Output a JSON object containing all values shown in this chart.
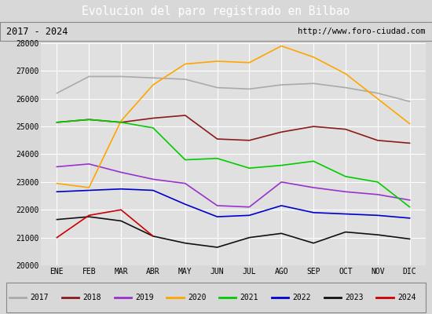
{
  "title": "Evolucion del paro registrado en Bilbao",
  "subtitle_left": "2017 - 2024",
  "subtitle_right": "http://www.foro-ciudad.com",
  "months": [
    "ENE",
    "FEB",
    "MAR",
    "ABR",
    "MAY",
    "JUN",
    "JUL",
    "AGO",
    "SEP",
    "OCT",
    "NOV",
    "DIC"
  ],
  "ylim": [
    20000,
    28000
  ],
  "yticks": [
    20000,
    21000,
    22000,
    23000,
    24000,
    25000,
    26000,
    27000,
    28000
  ],
  "series": {
    "2017": {
      "color": "#aaaaaa",
      "linewidth": 1.2,
      "data": [
        26200,
        26800,
        26800,
        26750,
        26700,
        26400,
        26350,
        26500,
        26550,
        26400,
        26200,
        25900
      ]
    },
    "2018": {
      "color": "#8b1a1a",
      "linewidth": 1.2,
      "data": [
        25150,
        25250,
        25150,
        25300,
        25400,
        24550,
        24500,
        24800,
        25000,
        24900,
        24500,
        24400
      ]
    },
    "2019": {
      "color": "#9932cc",
      "linewidth": 1.2,
      "data": [
        23550,
        23650,
        23350,
        23100,
        22950,
        22150,
        22100,
        23000,
        22800,
        22650,
        22550,
        22350
      ]
    },
    "2020": {
      "color": "#ffa500",
      "linewidth": 1.2,
      "data": [
        22950,
        22800,
        25200,
        26500,
        27250,
        27350,
        27300,
        27900,
        27500,
        26900,
        26000,
        25100
      ]
    },
    "2021": {
      "color": "#00cc00",
      "linewidth": 1.2,
      "data": [
        25150,
        25250,
        25150,
        24950,
        23800,
        23850,
        23500,
        23600,
        23750,
        23200,
        23000,
        22100
      ]
    },
    "2022": {
      "color": "#0000cc",
      "linewidth": 1.2,
      "data": [
        22650,
        22700,
        22750,
        22700,
        22200,
        21750,
        21800,
        22150,
        21900,
        21850,
        21800,
        21700
      ]
    },
    "2023": {
      "color": "#111111",
      "linewidth": 1.2,
      "data": [
        21650,
        21750,
        21600,
        21050,
        20800,
        20650,
        21000,
        21150,
        20800,
        21200,
        21100,
        20950
      ]
    },
    "2024": {
      "color": "#cc0000",
      "linewidth": 1.2,
      "data": [
        21000,
        21800,
        22000,
        21050,
        null,
        null,
        null,
        null,
        null,
        null,
        null,
        null
      ]
    }
  },
  "bg_color": "#d8d8d8",
  "plot_bg_color": "#e0e0e0",
  "title_bg_color": "#4f86c0",
  "title_text_color": "#ffffff",
  "header_bg_color": "#d0d0d0",
  "grid_color": "#ffffff",
  "legend_bg_color": "#d0d0d0"
}
